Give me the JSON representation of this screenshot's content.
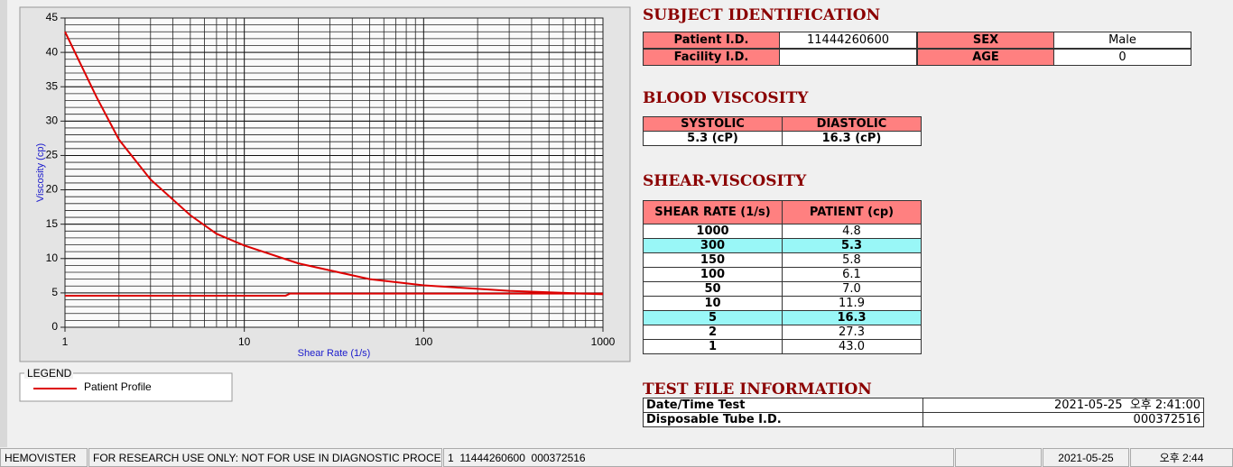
{
  "chart_data": {
    "type": "line",
    "xlabel": "Shear Rate (1/s)",
    "ylabel": "Viscosity (cp)",
    "xscale": "log",
    "xlim": [
      1,
      1000
    ],
    "xticks": [
      1,
      10,
      100,
      1000
    ],
    "ylim": [
      0,
      45
    ],
    "yticks": [
      0,
      5,
      10,
      15,
      20,
      25,
      30,
      35,
      40,
      45
    ],
    "grid": true,
    "legend_title": "LEGEND",
    "series": [
      {
        "name": "Patient Profile",
        "color": "#dd0000",
        "x": [
          1,
          1.5,
          2,
          3,
          5,
          7,
          10,
          20,
          50,
          100,
          150,
          300,
          1000
        ],
        "values": [
          43,
          33.5,
          27.3,
          21.5,
          16.3,
          13.6,
          11.9,
          9.3,
          7.0,
          6.1,
          5.8,
          5.3,
          4.8
        ]
      },
      {
        "color": "#dd0000",
        "x": [
          1,
          17,
          18,
          1000
        ],
        "values": [
          4.6,
          4.6,
          4.9,
          4.9
        ]
      }
    ]
  },
  "subject": {
    "title": "SUBJECT IDENTIFICATION",
    "fields": [
      {
        "label": "Patient I.D.",
        "value": "11444260600"
      },
      {
        "label": "SEX",
        "value": "Male"
      },
      {
        "label": "Facility I.D."
      },
      {
        "label": "AGE",
        "value": "0"
      }
    ]
  },
  "blood": {
    "title": "BLOOD VISCOSITY",
    "headers": [
      "SYSTOLIC",
      "DIASTOLIC"
    ],
    "values": [
      "5.3 (cP)",
      "16.3 (cP)"
    ]
  },
  "shear": {
    "title": "SHEAR-VISCOSITY",
    "headers": [
      "SHEAR RATE (1/s)",
      "PATIENT (cp)"
    ],
    "rows": [
      [
        "1000",
        "4.8"
      ],
      [
        "300",
        "5.3"
      ],
      [
        "150",
        "5.8"
      ],
      [
        "100",
        "6.1"
      ],
      [
        "50",
        "7.0"
      ],
      [
        "10",
        "11.9"
      ],
      [
        "5",
        "16.3"
      ],
      [
        "2",
        "27.3"
      ],
      [
        "1",
        "43.0"
      ]
    ],
    "highlight_rows": [
      1,
      6
    ],
    "highlight_color": "#99f7f7"
  },
  "test_file": {
    "title": "TEST FILE INFORMATION",
    "rows": [
      [
        "Date/Time Test",
        "2021-05-25  오후 2:41:00"
      ],
      [
        "Disposable Tube I.D.",
        "000372516"
      ]
    ]
  },
  "status_bar": [
    "HEMOVISTER",
    "FOR RESEARCH USE ONLY: NOT FOR USE IN DIAGNOSTIC PROCEDURES",
    "1  11444260600  000372516",
    "2021-05-25",
    "오후 2:44"
  ]
}
